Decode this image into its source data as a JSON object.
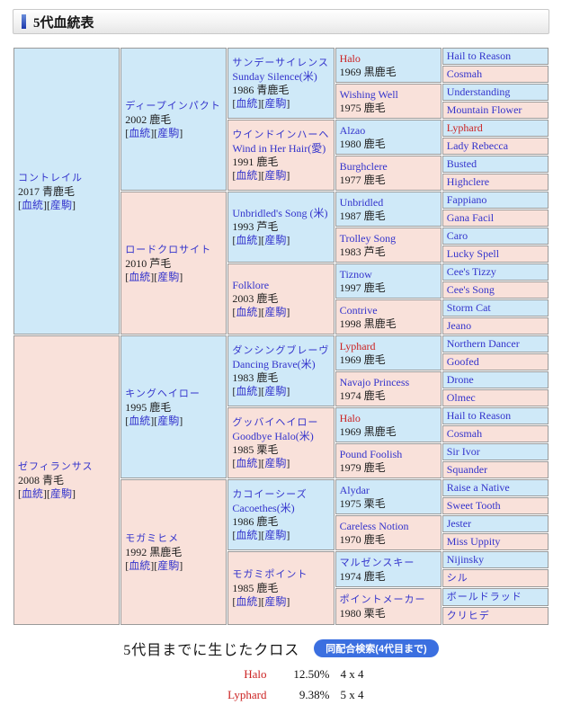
{
  "header": {
    "title": "5代血統表"
  },
  "colors": {
    "male_bg": "#cfe9f8",
    "female_bg": "#f9e1da",
    "link_blue": "#3333cc",
    "cross_red": "#cc2222",
    "button_blue": "#3b6fe0"
  },
  "pedigree": {
    "link_labels": [
      "血統",
      "産駒"
    ],
    "g1": [
      {
        "sex": "m",
        "ja": "コントレイル",
        "yc": "2017 青鹿毛",
        "links": true
      },
      {
        "sex": "f",
        "ja": "ゼフィランサス",
        "yc": "2008 青毛",
        "links": true
      }
    ],
    "g2": [
      {
        "sex": "m",
        "ja": "ディープインパクト",
        "yc": "2002 鹿毛",
        "links": true
      },
      {
        "sex": "f",
        "ja": "ロードクロサイト",
        "yc": "2010 芦毛",
        "links": true
      },
      {
        "sex": "m",
        "ja": "キングヘイロー",
        "yc": "1995 鹿毛",
        "links": true
      },
      {
        "sex": "f",
        "ja": "モガミヒメ",
        "yc": "1992 黒鹿毛",
        "links": true
      }
    ],
    "g3": [
      {
        "sex": "m",
        "ja": "サンデーサイレンス",
        "en": "Sunday Silence(米)",
        "yc": "1986 青鹿毛",
        "links": true
      },
      {
        "sex": "f",
        "ja": "ウインドインハーヘア",
        "en": "Wind in Her Hair(愛)",
        "yc": "1991 鹿毛",
        "links": true
      },
      {
        "sex": "m",
        "en": "Unbridled's Song (米)",
        "yc": "1993 芦毛",
        "links": true
      },
      {
        "sex": "f",
        "en": "Folklore",
        "yc": "2003 鹿毛",
        "links": true
      },
      {
        "sex": "m",
        "ja": "ダンシングブレーヴ",
        "en": "Dancing Brave(米)",
        "yc": "1983 鹿毛",
        "links": true
      },
      {
        "sex": "f",
        "ja": "グッバイヘイロー",
        "en": "Goodbye Halo(米)",
        "yc": "1985 栗毛",
        "links": true
      },
      {
        "sex": "m",
        "ja": "カコイーシーズ",
        "en": "Cacoethes(米)",
        "yc": "1986 鹿毛",
        "links": true
      },
      {
        "sex": "f",
        "ja": "モガミポイント",
        "yc": "1985 鹿毛",
        "links": true
      }
    ],
    "g4": [
      {
        "sex": "m",
        "en": "Halo",
        "red": true,
        "yc": "1969 黒鹿毛"
      },
      {
        "sex": "f",
        "en": "Wishing Well",
        "yc": "1975 鹿毛"
      },
      {
        "sex": "m",
        "en": "Alzao",
        "yc": "1980 鹿毛"
      },
      {
        "sex": "f",
        "en": "Burghclere",
        "yc": "1977 鹿毛"
      },
      {
        "sex": "m",
        "en": "Unbridled",
        "yc": "1987 鹿毛"
      },
      {
        "sex": "f",
        "en": "Trolley Song",
        "yc": "1983 芦毛"
      },
      {
        "sex": "m",
        "en": "Tiznow",
        "yc": "1997 鹿毛"
      },
      {
        "sex": "f",
        "en": "Contrive",
        "yc": "1998 黒鹿毛"
      },
      {
        "sex": "m",
        "en": "Lyphard",
        "red": true,
        "yc": "1969 鹿毛"
      },
      {
        "sex": "f",
        "en": "Navajo Princess",
        "yc": "1974 鹿毛"
      },
      {
        "sex": "m",
        "en": "Halo",
        "red": true,
        "yc": "1969 黒鹿毛"
      },
      {
        "sex": "f",
        "en": "Pound Foolish",
        "yc": "1979 鹿毛"
      },
      {
        "sex": "m",
        "en": "Alydar",
        "yc": "1975 栗毛"
      },
      {
        "sex": "f",
        "en": "Careless Notion",
        "yc": "1970 鹿毛"
      },
      {
        "sex": "m",
        "ja": "マルゼンスキー",
        "yc": "1974 鹿毛"
      },
      {
        "sex": "f",
        "ja": "ポイントメーカー",
        "yc": "1980 栗毛"
      }
    ],
    "g5": [
      {
        "sex": "m",
        "en": "Hail to Reason"
      },
      {
        "sex": "f",
        "en": "Cosmah"
      },
      {
        "sex": "m",
        "en": "Understanding"
      },
      {
        "sex": "f",
        "en": "Mountain Flower"
      },
      {
        "sex": "m",
        "en": "Lyphard",
        "red": true
      },
      {
        "sex": "f",
        "en": "Lady Rebecca"
      },
      {
        "sex": "m",
        "en": "Busted"
      },
      {
        "sex": "f",
        "en": "Highclere"
      },
      {
        "sex": "m",
        "en": "Fappiano"
      },
      {
        "sex": "f",
        "en": "Gana Facil"
      },
      {
        "sex": "m",
        "en": "Caro"
      },
      {
        "sex": "f",
        "en": "Lucky Spell"
      },
      {
        "sex": "m",
        "en": "Cee's Tizzy"
      },
      {
        "sex": "f",
        "en": "Cee's Song"
      },
      {
        "sex": "m",
        "en": "Storm Cat"
      },
      {
        "sex": "f",
        "en": "Jeano"
      },
      {
        "sex": "m",
        "en": "Northern Dancer"
      },
      {
        "sex": "f",
        "en": "Goofed"
      },
      {
        "sex": "m",
        "en": "Drone"
      },
      {
        "sex": "f",
        "en": "Olmec"
      },
      {
        "sex": "m",
        "en": "Hail to Reason"
      },
      {
        "sex": "f",
        "en": "Cosmah"
      },
      {
        "sex": "m",
        "en": "Sir Ivor"
      },
      {
        "sex": "f",
        "en": "Squander"
      },
      {
        "sex": "m",
        "en": "Raise a Native"
      },
      {
        "sex": "f",
        "en": "Sweet Tooth"
      },
      {
        "sex": "m",
        "en": "Jester"
      },
      {
        "sex": "f",
        "en": "Miss Uppity"
      },
      {
        "sex": "m",
        "en": "Nijinsky"
      },
      {
        "sex": "f",
        "ja": "シル"
      },
      {
        "sex": "m",
        "ja": "ボールドラッド"
      },
      {
        "sex": "f",
        "ja": "クリヒデ"
      }
    ]
  },
  "cross_section": {
    "title": "5代目までに生じたクロス",
    "button_label": "同配合検索(4代目まで)",
    "crosses": [
      {
        "name": "Halo",
        "pct": "12.50%",
        "cross": "4 x 4"
      },
      {
        "name": "Lyphard",
        "pct": "9.38%",
        "cross": "5 x 4"
      }
    ]
  }
}
